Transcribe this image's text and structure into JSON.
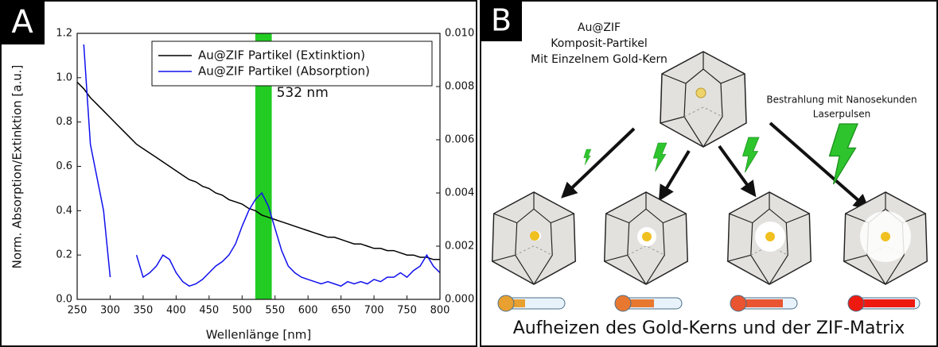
{
  "panel_a_label": "A",
  "chart_data": {
    "type": "line",
    "x_label": "Wellenlänge [nm]",
    "y_label": "Norm. Absorption/Extinktion [a.u.]",
    "x": [
      250,
      260,
      270,
      280,
      290,
      300,
      310,
      320,
      330,
      340,
      350,
      360,
      370,
      380,
      390,
      400,
      410,
      420,
      430,
      440,
      450,
      460,
      470,
      480,
      490,
      500,
      510,
      520,
      530,
      540,
      550,
      560,
      570,
      580,
      590,
      600,
      610,
      620,
      630,
      640,
      650,
      660,
      670,
      680,
      690,
      700,
      710,
      720,
      730,
      740,
      750,
      760,
      770,
      780,
      790,
      800
    ],
    "series": [
      {
        "name": "Au@ZIF Partikel (Extinktion)",
        "color": "#000000",
        "values": [
          0.98,
          0.95,
          0.91,
          0.88,
          0.85,
          0.82,
          0.79,
          0.76,
          0.73,
          0.7,
          0.68,
          0.66,
          0.64,
          0.62,
          0.6,
          0.58,
          0.56,
          0.54,
          0.53,
          0.51,
          0.5,
          0.48,
          0.47,
          0.45,
          0.44,
          0.43,
          0.41,
          0.4,
          0.38,
          0.37,
          0.36,
          0.35,
          0.34,
          0.33,
          0.32,
          0.31,
          0.3,
          0.29,
          0.28,
          0.28,
          0.27,
          0.26,
          0.25,
          0.25,
          0.24,
          0.23,
          0.23,
          0.22,
          0.22,
          0.21,
          0.2,
          0.2,
          0.19,
          0.19,
          0.18,
          0.18
        ]
      },
      {
        "name": "Au@ZIF Partikel (Absorption)",
        "color": "#1010ee",
        "values": [
          null,
          1.15,
          0.7,
          0.55,
          0.4,
          0.1,
          null,
          null,
          null,
          0.2,
          0.1,
          0.12,
          0.15,
          0.2,
          0.18,
          0.12,
          0.08,
          0.06,
          0.07,
          0.09,
          0.12,
          0.15,
          0.17,
          0.2,
          0.25,
          0.33,
          0.4,
          0.45,
          0.48,
          0.42,
          0.32,
          0.22,
          0.15,
          0.12,
          0.1,
          0.09,
          0.08,
          0.07,
          0.08,
          0.07,
          0.06,
          0.08,
          0.07,
          0.08,
          0.07,
          0.09,
          0.08,
          0.1,
          0.1,
          0.12,
          0.1,
          0.13,
          0.15,
          0.2,
          0.15,
          0.12
        ]
      }
    ],
    "xlim": [
      250,
      800
    ],
    "xticks": [
      250,
      300,
      350,
      400,
      450,
      500,
      550,
      600,
      650,
      700,
      750,
      800
    ],
    "ylim": [
      0,
      1.2
    ],
    "yticks": [
      {
        "value": 0,
        "label": "0.0"
      },
      0.2,
      0.4,
      0.6,
      0.8,
      {
        "value": 1,
        "label": "1.0"
      },
      1.2
    ],
    "y2lim": [
      0,
      0.01
    ],
    "y2ticks": [
      {
        "value": 0,
        "label": "0.000"
      },
      0.002,
      0.004,
      0.006,
      0.008,
      {
        "value": 0.01,
        "label": "0.010"
      }
    ],
    "legend": "upper right",
    "band": {
      "text": "532 nm",
      "x_range": [
        520,
        545
      ],
      "color": "#22cc22"
    }
  },
  "panel_b": {
    "label": "B",
    "particle_title": [
      "Au@ZIF",
      "Komposit-Partikel",
      "Mit Einzelnem Gold-Kern"
    ],
    "irradiation": [
      "Bestrahlung mit Nanosekunden",
      "Laserpulsen"
    ],
    "caption": "Aufheizen des Gold-Kerns und der ZIF-Matrix"
  }
}
